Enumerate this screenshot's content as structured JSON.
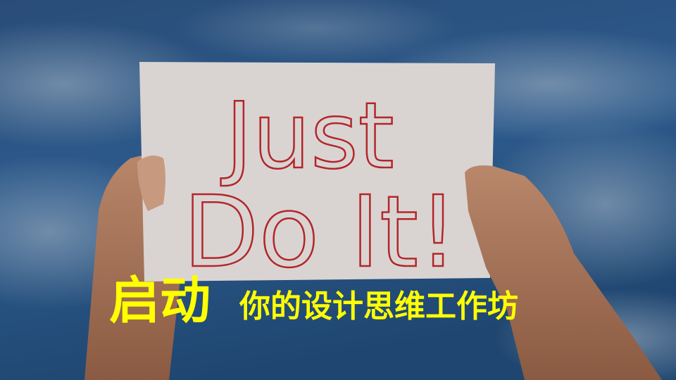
{
  "sign": {
    "line1": "Just",
    "line2": "Do It!"
  },
  "title": {
    "emphasis": "启动",
    "rest": "你的设计思维工作坊"
  }
}
